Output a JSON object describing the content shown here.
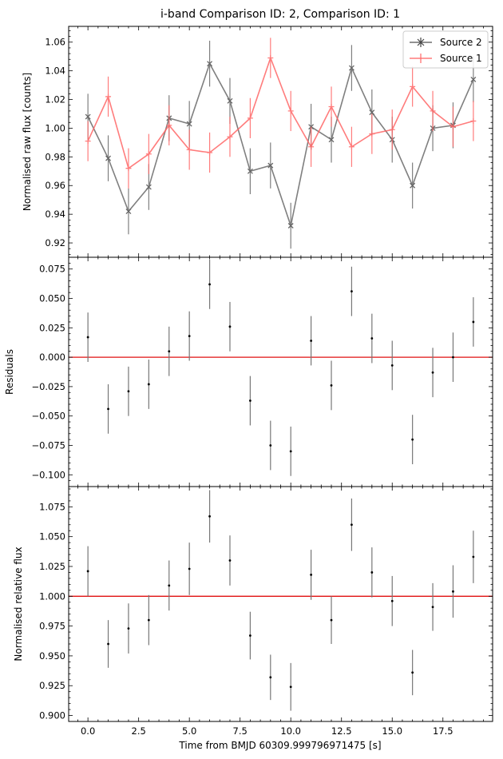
{
  "title": "i-band Comparison ID: 2, Comparison ID: 1",
  "xlabel": "Time from BMJD 60309.999796971475 [s]",
  "colors": {
    "source2": "#555555",
    "source1": "#ff6666",
    "zero_line": "#e01010",
    "errorbar": "#777777"
  },
  "chart_data": [
    {
      "type": "line",
      "ylabel": "Normalised raw flux [counts]",
      "xlim": [
        -0.95,
        19.95
      ],
      "ylim": [
        0.91,
        1.071
      ],
      "xticks": [
        0.0,
        2.5,
        5.0,
        7.5,
        10.0,
        12.5,
        15.0,
        17.5
      ],
      "yticks": [
        0.92,
        0.94,
        0.96,
        0.98,
        1.0,
        1.02,
        1.04,
        1.06
      ],
      "ytick_labels": [
        "0.92",
        "0.94",
        "0.96",
        "0.98",
        "1.00",
        "1.02",
        "1.04",
        "1.06"
      ],
      "legend_position": "top-right",
      "x": [
        0,
        1,
        2,
        3,
        4,
        5,
        6,
        7,
        8,
        9,
        10,
        11,
        12,
        13,
        14,
        15,
        16,
        17,
        18,
        19
      ],
      "series": [
        {
          "name": "Source 2",
          "marker": "x",
          "values": [
            1.008,
            0.979,
            0.942,
            0.959,
            1.007,
            1.003,
            1.045,
            1.019,
            0.97,
            0.974,
            0.932,
            1.001,
            0.992,
            1.042,
            1.011,
            0.992,
            0.96,
            1.0,
            1.002,
            1.034
          ],
          "errors": [
            0.016,
            0.016,
            0.016,
            0.016,
            0.016,
            0.016,
            0.016,
            0.016,
            0.016,
            0.016,
            0.016,
            0.016,
            0.016,
            0.016,
            0.016,
            0.016,
            0.016,
            0.016,
            0.016,
            0.016
          ]
        },
        {
          "name": "Source 1",
          "marker": "+",
          "values": [
            0.991,
            1.022,
            0.972,
            0.982,
            1.002,
            0.985,
            0.983,
            0.994,
            1.007,
            1.049,
            1.012,
            0.987,
            1.015,
            0.987,
            0.996,
            0.999,
            1.029,
            1.012,
            1.001,
            1.005
          ],
          "errors": [
            0.014,
            0.014,
            0.014,
            0.014,
            0.014,
            0.014,
            0.014,
            0.014,
            0.014,
            0.014,
            0.014,
            0.014,
            0.014,
            0.014,
            0.014,
            0.014,
            0.014,
            0.014,
            0.014,
            0.014
          ]
        }
      ]
    },
    {
      "type": "scatter",
      "ylabel": "Residuals",
      "xlim": [
        -0.95,
        19.95
      ],
      "ylim": [
        -0.11,
        0.085
      ],
      "xticks": [
        0.0,
        2.5,
        5.0,
        7.5,
        10.0,
        12.5,
        15.0,
        17.5
      ],
      "yticks": [
        -0.1,
        -0.075,
        -0.05,
        -0.025,
        0.0,
        0.025,
        0.05,
        0.075
      ],
      "ytick_labels": [
        "−0.100",
        "−0.075",
        "−0.050",
        "−0.025",
        "0.000",
        "0.025",
        "0.050",
        "0.075"
      ],
      "reference_line": 0.0,
      "x": [
        0,
        1,
        2,
        3,
        4,
        5,
        6,
        7,
        8,
        9,
        10,
        11,
        12,
        13,
        14,
        15,
        16,
        17,
        18,
        19
      ],
      "values": [
        0.017,
        -0.044,
        -0.029,
        -0.023,
        0.005,
        0.018,
        0.062,
        0.026,
        -0.037,
        -0.075,
        -0.08,
        0.014,
        -0.024,
        0.056,
        0.016,
        -0.007,
        -0.07,
        -0.013,
        0.0,
        0.03
      ],
      "errors": [
        0.021,
        0.021,
        0.021,
        0.021,
        0.021,
        0.021,
        0.021,
        0.021,
        0.021,
        0.021,
        0.021,
        0.021,
        0.021,
        0.021,
        0.021,
        0.021,
        0.021,
        0.021,
        0.021,
        0.021
      ]
    },
    {
      "type": "scatter",
      "ylabel": "Normalised relative flux",
      "xlim": [
        -0.95,
        19.95
      ],
      "ylim": [
        0.895,
        1.092
      ],
      "xticks": [
        0.0,
        2.5,
        5.0,
        7.5,
        10.0,
        12.5,
        15.0,
        17.5
      ],
      "xtick_labels": [
        "0.0",
        "2.5",
        "5.0",
        "7.5",
        "10.0",
        "12.5",
        "15.0",
        "17.5"
      ],
      "yticks": [
        0.9,
        0.925,
        0.95,
        0.975,
        1.0,
        1.025,
        1.05,
        1.075
      ],
      "ytick_labels": [
        "0.900",
        "0.925",
        "0.950",
        "0.975",
        "1.000",
        "1.025",
        "1.050",
        "1.075"
      ],
      "reference_line": 1.0,
      "x": [
        0,
        1,
        2,
        3,
        4,
        5,
        6,
        7,
        8,
        9,
        10,
        11,
        12,
        13,
        14,
        15,
        16,
        17,
        18,
        19
      ],
      "values": [
        1.021,
        0.96,
        0.973,
        0.98,
        1.009,
        1.023,
        1.067,
        1.03,
        0.967,
        0.932,
        0.924,
        1.018,
        0.98,
        1.06,
        1.02,
        0.996,
        0.936,
        0.991,
        1.004,
        1.033
      ],
      "errors": [
        0.021,
        0.02,
        0.021,
        0.021,
        0.021,
        0.022,
        0.022,
        0.021,
        0.02,
        0.019,
        0.02,
        0.021,
        0.02,
        0.022,
        0.021,
        0.021,
        0.019,
        0.02,
        0.022,
        0.022
      ]
    }
  ]
}
